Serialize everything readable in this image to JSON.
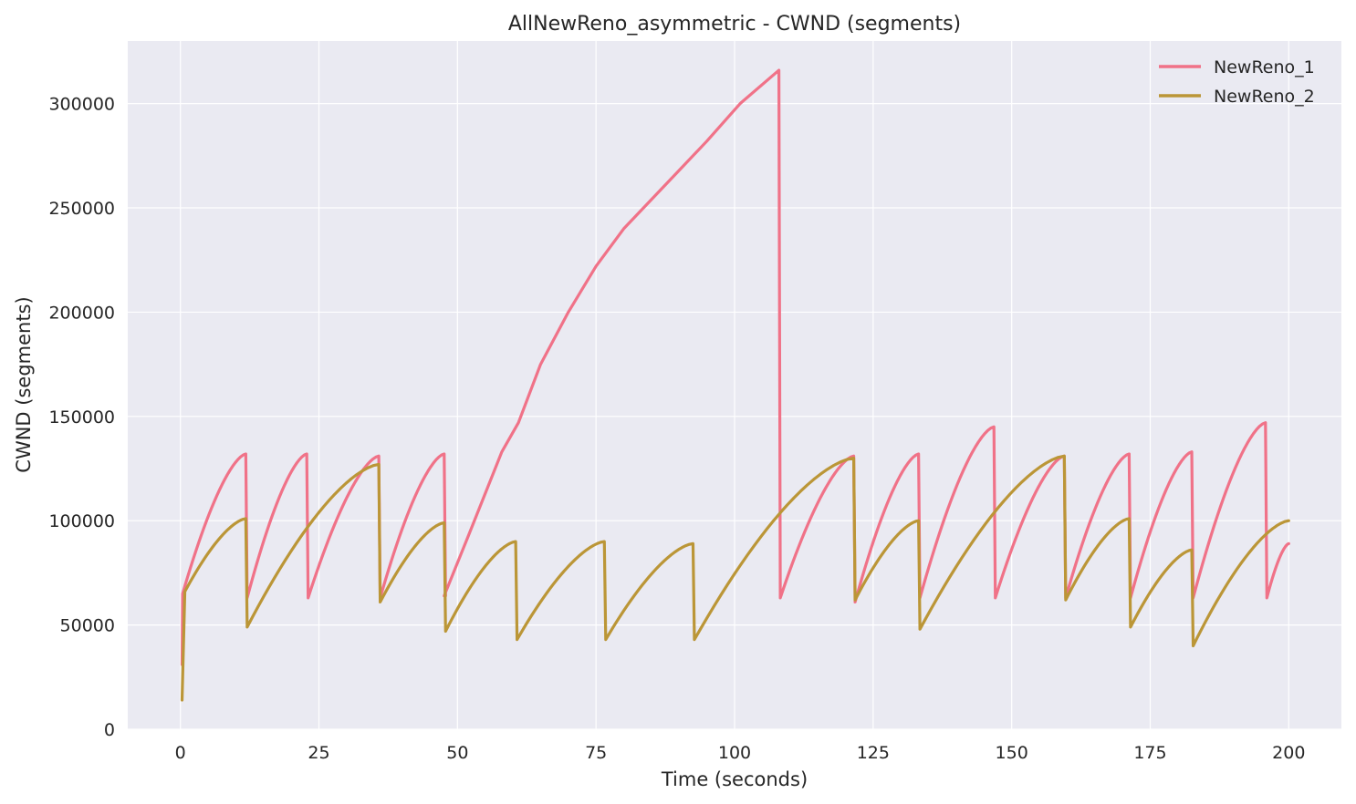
{
  "chart_data": {
    "type": "line",
    "title": "AllNewReno_asymmetric - CWND (segments)",
    "xlabel": "Time (seconds)",
    "ylabel": "CWND (segments)",
    "xlim": [
      -9.5,
      209.5
    ],
    "ylim": [
      0,
      330000
    ],
    "xticks": [
      0,
      25,
      50,
      75,
      100,
      125,
      150,
      175,
      200
    ],
    "yticks": [
      0,
      50000,
      100000,
      150000,
      200000,
      250000,
      300000
    ],
    "grid": true,
    "legend_position": "top-right",
    "series": [
      {
        "name": "NewReno_1",
        "color": "#f07288",
        "segments": [
          {
            "start": [
              0.3,
              31000
            ],
            "peak": [
              0.4,
              65000
            ],
            "end": [
              11.8,
              132000
            ],
            "drop_to": 63000
          },
          {
            "end": [
              22.8,
              132000
            ],
            "drop_to": 63000
          },
          {
            "end": [
              35.8,
              131000
            ],
            "drop_to": 63000
          },
          {
            "end": [
              47.6,
              132000
            ],
            "drop_to": 64000
          },
          {
            "points": [
              [
                47.6,
                64000
              ],
              [
                52,
                93000
              ],
              [
                58,
                133000
              ],
              [
                61,
                147000
              ],
              [
                65,
                175000
              ],
              [
                70,
                200000
              ],
              [
                75,
                222000
              ],
              [
                80,
                240000
              ],
              [
                85,
                254000
              ],
              [
                90,
                268000
              ],
              [
                95,
                282000
              ],
              [
                101,
                300000
              ],
              [
                108,
                316000
              ]
            ],
            "drop_to": 63000
          },
          {
            "end": [
              121.5,
              131000
            ],
            "drop_to": 61000
          },
          {
            "end": [
              133.2,
              132000
            ],
            "drop_to": 63000
          },
          {
            "end": [
              146.8,
              145000
            ],
            "drop_to": 63000
          },
          {
            "end": [
              159.5,
              131000
            ],
            "drop_to": 63000
          },
          {
            "end": [
              171.2,
              132000
            ],
            "drop_to": 63000
          },
          {
            "end": [
              182.5,
              133000
            ],
            "drop_to": 63000
          },
          {
            "end": [
              195.8,
              147000
            ],
            "drop_to": 63000
          },
          {
            "end": [
              200,
              89000
            ]
          }
        ]
      },
      {
        "name": "NewReno_2",
        "color": "#bb9637",
        "segments": [
          {
            "start": [
              0.3,
              14000
            ],
            "peak": [
              0.8,
              66000
            ],
            "end": [
              11.8,
              101000
            ],
            "drop_to": 49000
          },
          {
            "end": [
              35.8,
              127000
            ],
            "drop_to": 61000
          },
          {
            "end": [
              47.6,
              99000
            ],
            "drop_to": 47000
          },
          {
            "end": [
              60.5,
              90000
            ],
            "drop_to": 43000
          },
          {
            "end": [
              76.5,
              90000
            ],
            "drop_to": 43000
          },
          {
            "end": [
              92.5,
              89000
            ],
            "drop_to": 43000
          },
          {
            "end": [
              121.5,
              130000
            ],
            "drop_to": 62000
          },
          {
            "end": [
              133.2,
              100000
            ],
            "drop_to": 48000
          },
          {
            "end": [
              159.5,
              131000
            ],
            "drop_to": 62000
          },
          {
            "end": [
              171.2,
              101000
            ],
            "drop_to": 49000
          },
          {
            "end": [
              182.5,
              86000
            ],
            "drop_to": 40000
          },
          {
            "end": [
              200,
              100000
            ]
          }
        ]
      }
    ]
  }
}
